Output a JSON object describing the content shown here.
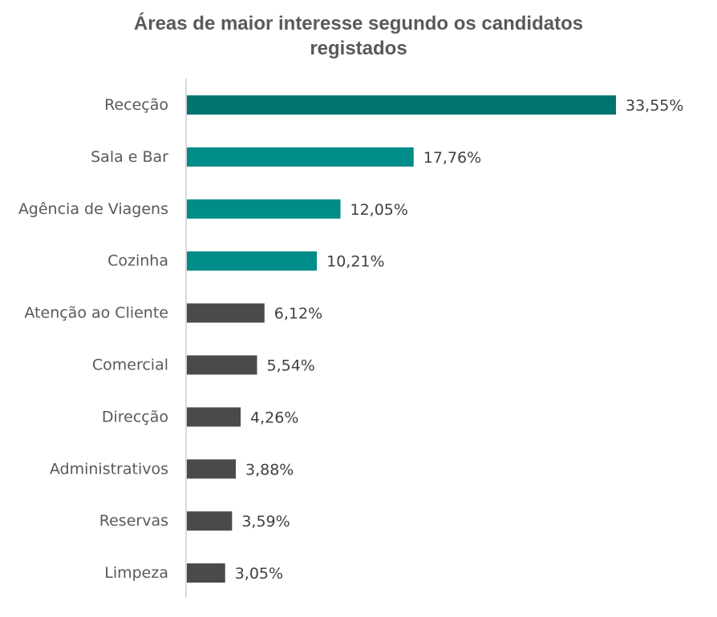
{
  "chart_data": {
    "type": "bar",
    "orientation": "horizontal",
    "title_lines": [
      "Áreas de maior interesse segundo os candidatos",
      "registados"
    ],
    "categories": [
      "Receção",
      "Sala e Bar",
      "Agência de Viagens",
      "Cozinha",
      "Atenção ao Cliente",
      "Comercial",
      "Direcção",
      "Administrativos",
      "Reservas",
      "Limpeza"
    ],
    "values": [
      33.55,
      17.76,
      12.05,
      10.21,
      6.12,
      5.54,
      4.26,
      3.88,
      3.59,
      3.05
    ],
    "value_labels": [
      "33,55%",
      "17,76%",
      "12,05%",
      "10,21%",
      "6,12%",
      "5,54%",
      "4,26%",
      "3,88%",
      "3,59%",
      "3,05%"
    ],
    "bar_colors": [
      "#00756F",
      "#008C88",
      "#008C88",
      "#008C88",
      "#4A4A4A",
      "#4A4A4A",
      "#4A4A4A",
      "#4A4A4A",
      "#4A4A4A",
      "#4A4A4A"
    ],
    "axis_color": "#D9D9D9",
    "xlim": [
      0,
      33.55
    ],
    "grid": false,
    "legend": "none"
  }
}
